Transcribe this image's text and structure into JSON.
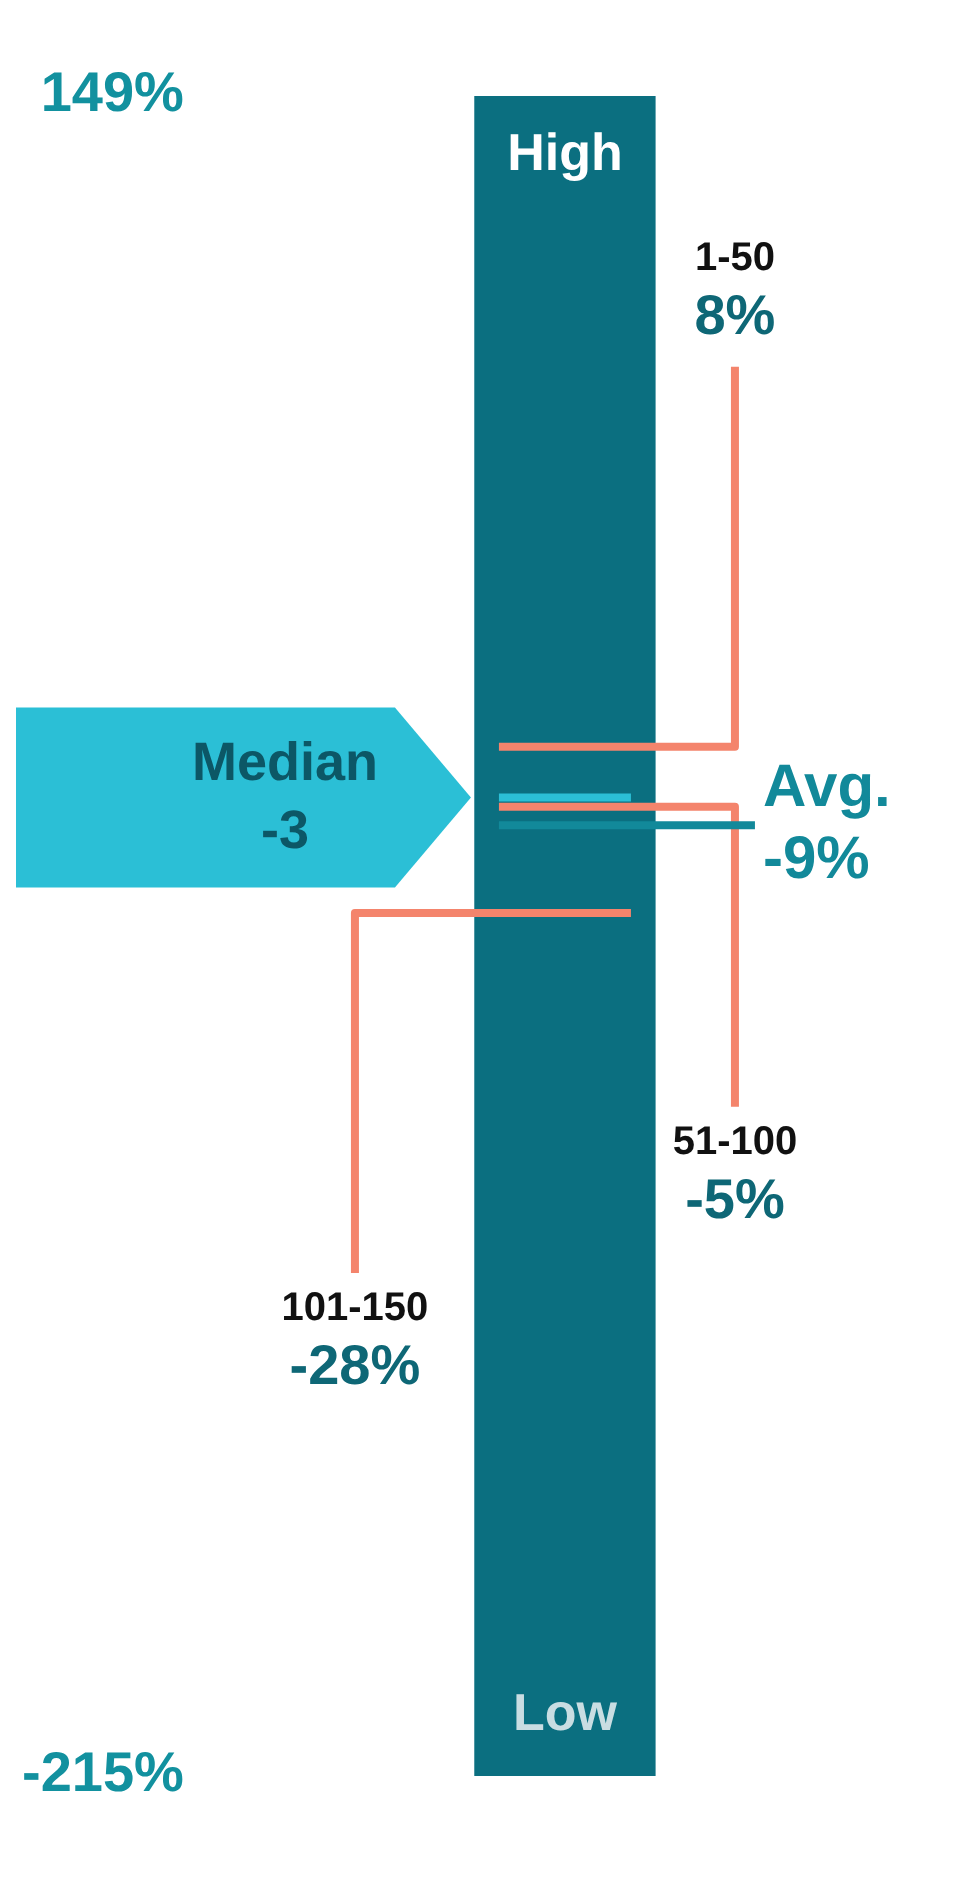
{
  "chart_data": {
    "type": "bar",
    "categories": [
      null
    ],
    "base": [
      -215
    ],
    "values": [
      364
    ],
    "color": "#0b6f80",
    "ylim": [
      -215,
      149
    ],
    "yticks": [
      {
        "value": 149,
        "label": "149%"
      },
      {
        "value": -215,
        "label": "-215%"
      }
    ],
    "annotations": [
      "High",
      "Low"
    ],
    "ref_lines": [
      {
        "axis": "y",
        "value": 8,
        "label": "1-50\n8%",
        "color": "#f4846c"
      },
      {
        "axis": "y",
        "value": -3,
        "label": "Median\n-3",
        "color": "#2bbfd6"
      },
      {
        "axis": "y",
        "value": -5,
        "label": "51-100\n-5%",
        "color": "#f4846c"
      },
      {
        "axis": "y",
        "value": -9,
        "label": "Avg.\n-9%",
        "color": "#12899a"
      },
      {
        "axis": "y",
        "value": -28,
        "label": "101-150\n-28%",
        "color": "#f4846c"
      }
    ],
    "legend": false
  }
}
